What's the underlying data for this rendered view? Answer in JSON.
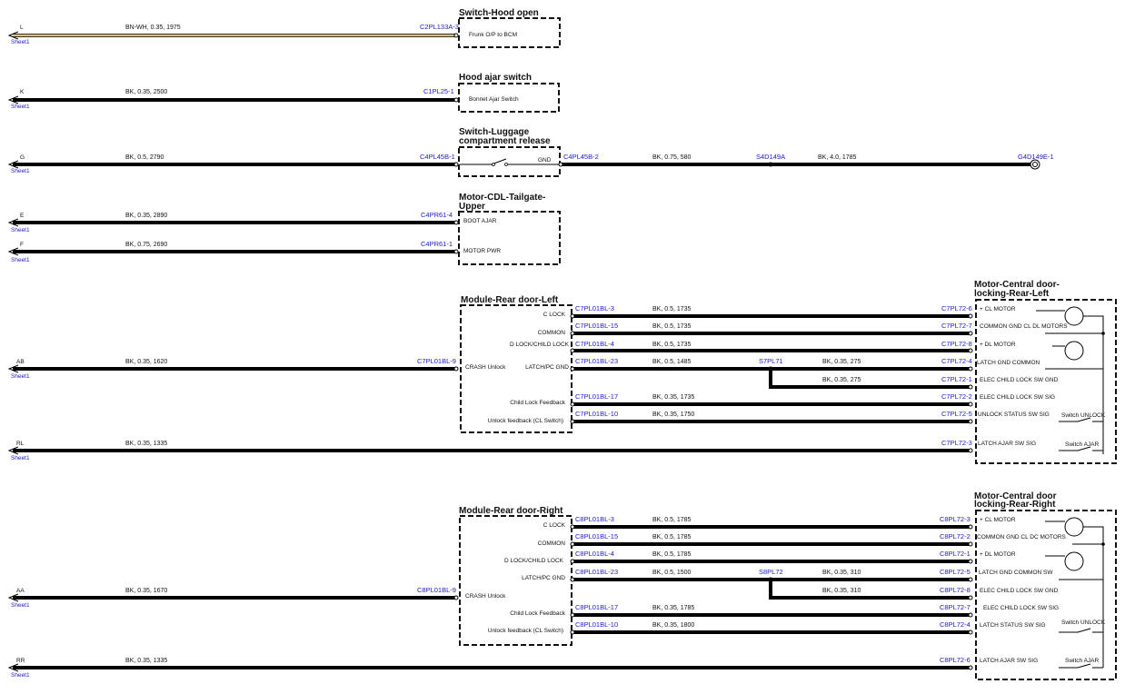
{
  "components": {
    "hood_open": {
      "title_lines": [
        "Switch-Hood open"
      ],
      "pin_label": "Frunk O/P to BCM"
    },
    "hood_ajar": {
      "title_lines": [
        "Hood ajar switch"
      ],
      "pin_label": "Bonnet Ajar Switch"
    },
    "luggage": {
      "title_lines": [
        "Switch-Luggage",
        "compartment release"
      ],
      "pin_label": "GND"
    },
    "tailgate": {
      "title_lines": [
        "Motor-CDL-Tailgate-",
        "Upper"
      ],
      "pins": [
        "BOOT AJAR",
        "MOTOR PWR"
      ]
    },
    "rdl_module": {
      "title_lines": [
        "Module-Rear door-Left"
      ],
      "left_pin": "CRASH Unlock",
      "pins": [
        "C LOCK",
        "COMMON",
        "D LOCK/CHILD LOCK",
        "LATCH/PC GND",
        "Child Lock Feedback",
        "Unlock feedback (CL Switch)"
      ]
    },
    "rdl_latch": {
      "title_lines": [
        "Motor-Central door-",
        "locking-Rear-Left"
      ],
      "pins": [
        "+ CL MOTOR",
        "COMMON GND CL DL MOTORS",
        "+ DL MOTOR",
        "LATCH GND COMMON",
        "ELEC CHILD LOCK SW GND",
        "ELEC CHILD LOCK SW SIG",
        "UNLOCK STATUS SW SIG",
        "LATCH AJAR SW SIG"
      ],
      "switch_labels": [
        "Switch UNLOCK",
        "Switch AJAR"
      ]
    },
    "rdr_module": {
      "title_lines": [
        "Module-Rear door-Right"
      ],
      "left_pin": "CRASH Unlock",
      "pins": [
        "C LOCK",
        "COMMON",
        "D LOCK/CHILD LOCK",
        "LATCH/PC GND",
        "Child Lock Feedback",
        "Unlock feedback (CL Switch)"
      ]
    },
    "rdr_latch": {
      "title_lines": [
        "Motor-Central door",
        "locking-Rear-Right"
      ],
      "pins": [
        "+ CL MOTOR",
        "COMMON GND CL DC MOTORS",
        "+ DL MOTOR",
        "LATCH GND COMMON SW",
        "ELEC CHILD LOCK SW GND",
        "ELEC CHILD LOCK SW SIG",
        "LATCH STATUS SW SIG",
        "LATCH AJAR SW SIG"
      ],
      "switch_labels": [
        "Switch UNLOCK",
        "Switch AJAR"
      ]
    }
  },
  "offsheet": [
    {
      "letter": "L",
      "sheet": "Sheet1",
      "wire": "BN-WH,  0.35,  1975",
      "connector": "C2PL133A-3",
      "colors": [
        "#8b4513",
        "#ffffff"
      ]
    },
    {
      "letter": "K",
      "sheet": "Sheet1",
      "wire": "BK,  0.35,  2500",
      "connector": "C1PL25-1"
    },
    {
      "letter": "G",
      "sheet": "Sheet1",
      "wire": "BK,  0.5,  2790",
      "connector": "C4PL45B-1"
    },
    {
      "letter": "E",
      "sheet": "Sheet1",
      "wire": "BK,  0.35,  2890",
      "connector": "C4PR61-4"
    },
    {
      "letter": "F",
      "sheet": "Sheet1",
      "wire": "BK,  0.75,  2690",
      "connector": "C4PR61-1"
    },
    {
      "letter": "AB",
      "sheet": "Sheet1",
      "wire": "BK,  0.35,  1620",
      "connector": "C7PL01BL-9"
    },
    {
      "letter": "RL",
      "sheet": "Sheet1",
      "wire": "BK,  0.35,  1335",
      "connector": "C7PL72-3"
    },
    {
      "letter": "AA",
      "sheet": "Sheet1",
      "wire": "BK,  0.35,  1670",
      "connector": "C8PL01BL-9"
    },
    {
      "letter": "RR",
      "sheet": "Sheet1",
      "wire": "BK,  0.35,  1335",
      "connector": "C8PL72-6"
    }
  ],
  "ground_path": {
    "connector": "C4PL45B-2",
    "wire1": "BK,  0.75,  580",
    "splice": "S4D149A",
    "wire2": "BK,  4.0,  1785",
    "ground": "G4D149E-1"
  },
  "left_harness": [
    {
      "from": "C7PL01BL-3",
      "wire": "BK,  0.5,  1735",
      "to": "C7PL72-6"
    },
    {
      "from": "C7PL01BL-15",
      "wire": "BK,  0.5,  1735",
      "to": "C7PL72-7"
    },
    {
      "from": "C7PL01BL-4",
      "wire": "BK,  0.5,  1735",
      "to": "C7PL72-8"
    },
    {
      "from": "C7PL01BL-23",
      "wire": "BK,  0.5,  1485",
      "splice": "S7PL71",
      "wire2": "BK,  0.35,  275",
      "to": "C7PL72-4"
    },
    {
      "wire": "BK,  0.35,  275",
      "to": "C7PL72-1"
    },
    {
      "from": "C7PL01BL-17",
      "wire": "BK,  0.35,  1735",
      "to": "C7PL72-2"
    },
    {
      "from": "C7PL01BL-10",
      "wire": "BK,  0.35,  1750",
      "to": "C7PL72-5"
    }
  ],
  "right_harness": [
    {
      "from": "C8PL01BL-3",
      "wire": "BK,  0.5,  1785",
      "to": "C8PL72-3"
    },
    {
      "from": "C8PL01BL-15",
      "wire": "BK,  0.5,  1785",
      "to": "C8PL72-2"
    },
    {
      "from": "C8PL01BL-4",
      "wire": "BK,  0.5,  1785",
      "to": "C8PL72-1"
    },
    {
      "from": "C8PL01BL-23",
      "wire": "BK,  0.5,  1500",
      "splice": "S8PL72",
      "wire2": "BK,  0.35,  310",
      "to": "C8PL72-5"
    },
    {
      "wire": "BK,  0.35,  310",
      "to": "C8PL72-8"
    },
    {
      "from": "C8PL01BL-17",
      "wire": "BK,  0.35,  1785",
      "to": "C8PL72-7"
    },
    {
      "from": "C8PL01BL-10",
      "wire": "BK,  0.35,  1800",
      "to": "C8PL72-4"
    }
  ]
}
